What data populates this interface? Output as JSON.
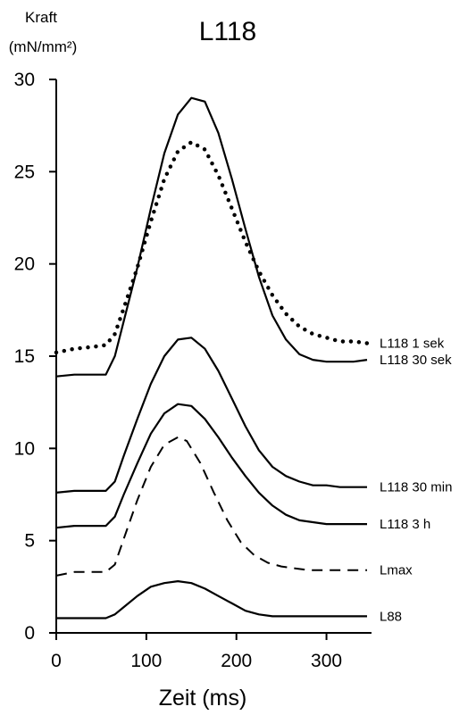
{
  "chart_data": {
    "type": "line",
    "title": "L118",
    "ylabel_line1": "Kraft",
    "ylabel_line2": "(mN/mm²)",
    "xlabel": "Zeit (ms)",
    "xlim": [
      0,
      350
    ],
    "ylim": [
      0,
      30
    ],
    "x_ticks": [
      0,
      100,
      200,
      300
    ],
    "y_ticks": [
      0,
      5,
      10,
      15,
      20,
      25,
      30
    ],
    "grid": false,
    "series": [
      {
        "name": "L118 1 sek",
        "style": "dotted",
        "x": [
          0,
          20,
          40,
          55,
          65,
          75,
          90,
          105,
          120,
          135,
          150,
          165,
          180,
          195,
          210,
          225,
          240,
          255,
          270,
          285,
          300,
          315,
          330,
          345
        ],
        "y": [
          15.2,
          15.4,
          15.5,
          15.6,
          16.2,
          17.6,
          19.8,
          22.3,
          24.6,
          26.1,
          26.6,
          26.2,
          24.8,
          23.0,
          21.2,
          19.6,
          18.3,
          17.3,
          16.6,
          16.2,
          16.0,
          15.8,
          15.8,
          15.7
        ]
      },
      {
        "name": "L118 30 sek",
        "style": "solid",
        "x": [
          0,
          20,
          40,
          55,
          65,
          75,
          90,
          105,
          120,
          135,
          150,
          165,
          180,
          195,
          210,
          225,
          240,
          255,
          270,
          285,
          300,
          315,
          330,
          345
        ],
        "y": [
          13.9,
          14.0,
          14.0,
          14.0,
          15.0,
          16.9,
          19.8,
          23.0,
          26.0,
          28.1,
          29.0,
          28.8,
          27.1,
          24.6,
          21.9,
          19.3,
          17.2,
          15.9,
          15.1,
          14.8,
          14.7,
          14.7,
          14.7,
          14.8
        ]
      },
      {
        "name": "L118 30 min",
        "style": "solid",
        "x": [
          0,
          20,
          40,
          55,
          65,
          75,
          90,
          105,
          120,
          135,
          150,
          165,
          180,
          195,
          210,
          225,
          240,
          255,
          270,
          285,
          300,
          315,
          330,
          345
        ],
        "y": [
          7.6,
          7.7,
          7.7,
          7.7,
          8.2,
          9.6,
          11.6,
          13.5,
          15.0,
          15.9,
          16.0,
          15.4,
          14.2,
          12.7,
          11.2,
          9.9,
          9.0,
          8.5,
          8.2,
          8.0,
          8.0,
          7.9,
          7.9,
          7.9
        ]
      },
      {
        "name": "L118 3 h",
        "style": "solid",
        "x": [
          0,
          20,
          40,
          55,
          65,
          75,
          90,
          105,
          120,
          135,
          150,
          165,
          180,
          195,
          210,
          225,
          240,
          255,
          270,
          285,
          300,
          315,
          330,
          345
        ],
        "y": [
          5.7,
          5.8,
          5.8,
          5.8,
          6.3,
          7.5,
          9.2,
          10.8,
          11.9,
          12.4,
          12.3,
          11.6,
          10.6,
          9.5,
          8.5,
          7.6,
          6.9,
          6.4,
          6.1,
          6.0,
          5.9,
          5.9,
          5.9,
          5.9
        ]
      },
      {
        "name": "Lmax",
        "style": "dashed",
        "x": [
          0,
          20,
          40,
          55,
          65,
          75,
          90,
          105,
          120,
          135,
          145,
          160,
          175,
          190,
          205,
          220,
          235,
          250,
          265,
          280,
          300,
          320,
          345
        ],
        "y": [
          3.1,
          3.3,
          3.3,
          3.3,
          3.7,
          5.1,
          7.2,
          9.0,
          10.2,
          10.6,
          10.4,
          9.2,
          7.6,
          6.1,
          4.9,
          4.2,
          3.8,
          3.6,
          3.5,
          3.4,
          3.4,
          3.4,
          3.4
        ]
      },
      {
        "name": "L88",
        "style": "solid",
        "x": [
          0,
          20,
          40,
          55,
          65,
          75,
          90,
          105,
          120,
          135,
          150,
          165,
          180,
          195,
          210,
          225,
          240,
          255,
          270,
          285,
          300,
          320,
          345
        ],
        "y": [
          0.8,
          0.8,
          0.8,
          0.8,
          1.0,
          1.4,
          2.0,
          2.5,
          2.7,
          2.8,
          2.7,
          2.4,
          2.0,
          1.6,
          1.2,
          1.0,
          0.9,
          0.9,
          0.9,
          0.9,
          0.9,
          0.9,
          0.9
        ]
      }
    ]
  }
}
